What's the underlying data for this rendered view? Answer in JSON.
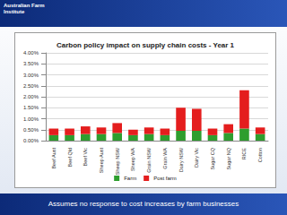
{
  "header": {
    "logo": "Australian Farm Institute"
  },
  "footer": "Assumes no response to cost increases by farm businesses",
  "chart_data": {
    "type": "bar",
    "title": "Carbon policy impact on supply chain costs - Year 1",
    "categories": [
      "Beef Aust",
      "Beef Qld",
      "Beef Vic",
      "Sheep Aust",
      "Sheep NSW",
      "Sheep WA",
      "Grain NSW",
      "Grain WA",
      "Dairy NSW",
      "Dairy Vic",
      "Sugar CQ",
      "Sugar NQ",
      "RICE",
      "Cotton"
    ],
    "series": [
      {
        "name": "Farm",
        "color": "#2e9e2e",
        "values": [
          0.25,
          0.25,
          0.3,
          0.3,
          0.35,
          0.25,
          0.3,
          0.25,
          0.45,
          0.45,
          0.25,
          0.35,
          0.55,
          0.3
        ]
      },
      {
        "name": "Post farm",
        "color": "#e41e1e",
        "values": [
          0.3,
          0.3,
          0.35,
          0.3,
          0.45,
          0.25,
          0.3,
          0.3,
          1.05,
          1.0,
          0.3,
          0.4,
          1.75,
          0.3
        ]
      }
    ],
    "stacked": true,
    "ylim": [
      0,
      4
    ],
    "yticks": [
      {
        "value": 0,
        "label": "0.00%"
      },
      {
        "value": 0.5,
        "label": "0.50%"
      },
      {
        "value": 1,
        "label": "1.00%"
      },
      {
        "value": 1.5,
        "label": "1.50%"
      },
      {
        "value": 2,
        "label": "2.00%"
      },
      {
        "value": 2.5,
        "label": "2.50%"
      },
      {
        "value": 3,
        "label": "3.00%"
      },
      {
        "value": 3.5,
        "label": "3.50%"
      },
      {
        "value": 4,
        "label": "4.00%"
      }
    ],
    "grid": true,
    "legend": "bottom",
    "data_labels": false
  }
}
